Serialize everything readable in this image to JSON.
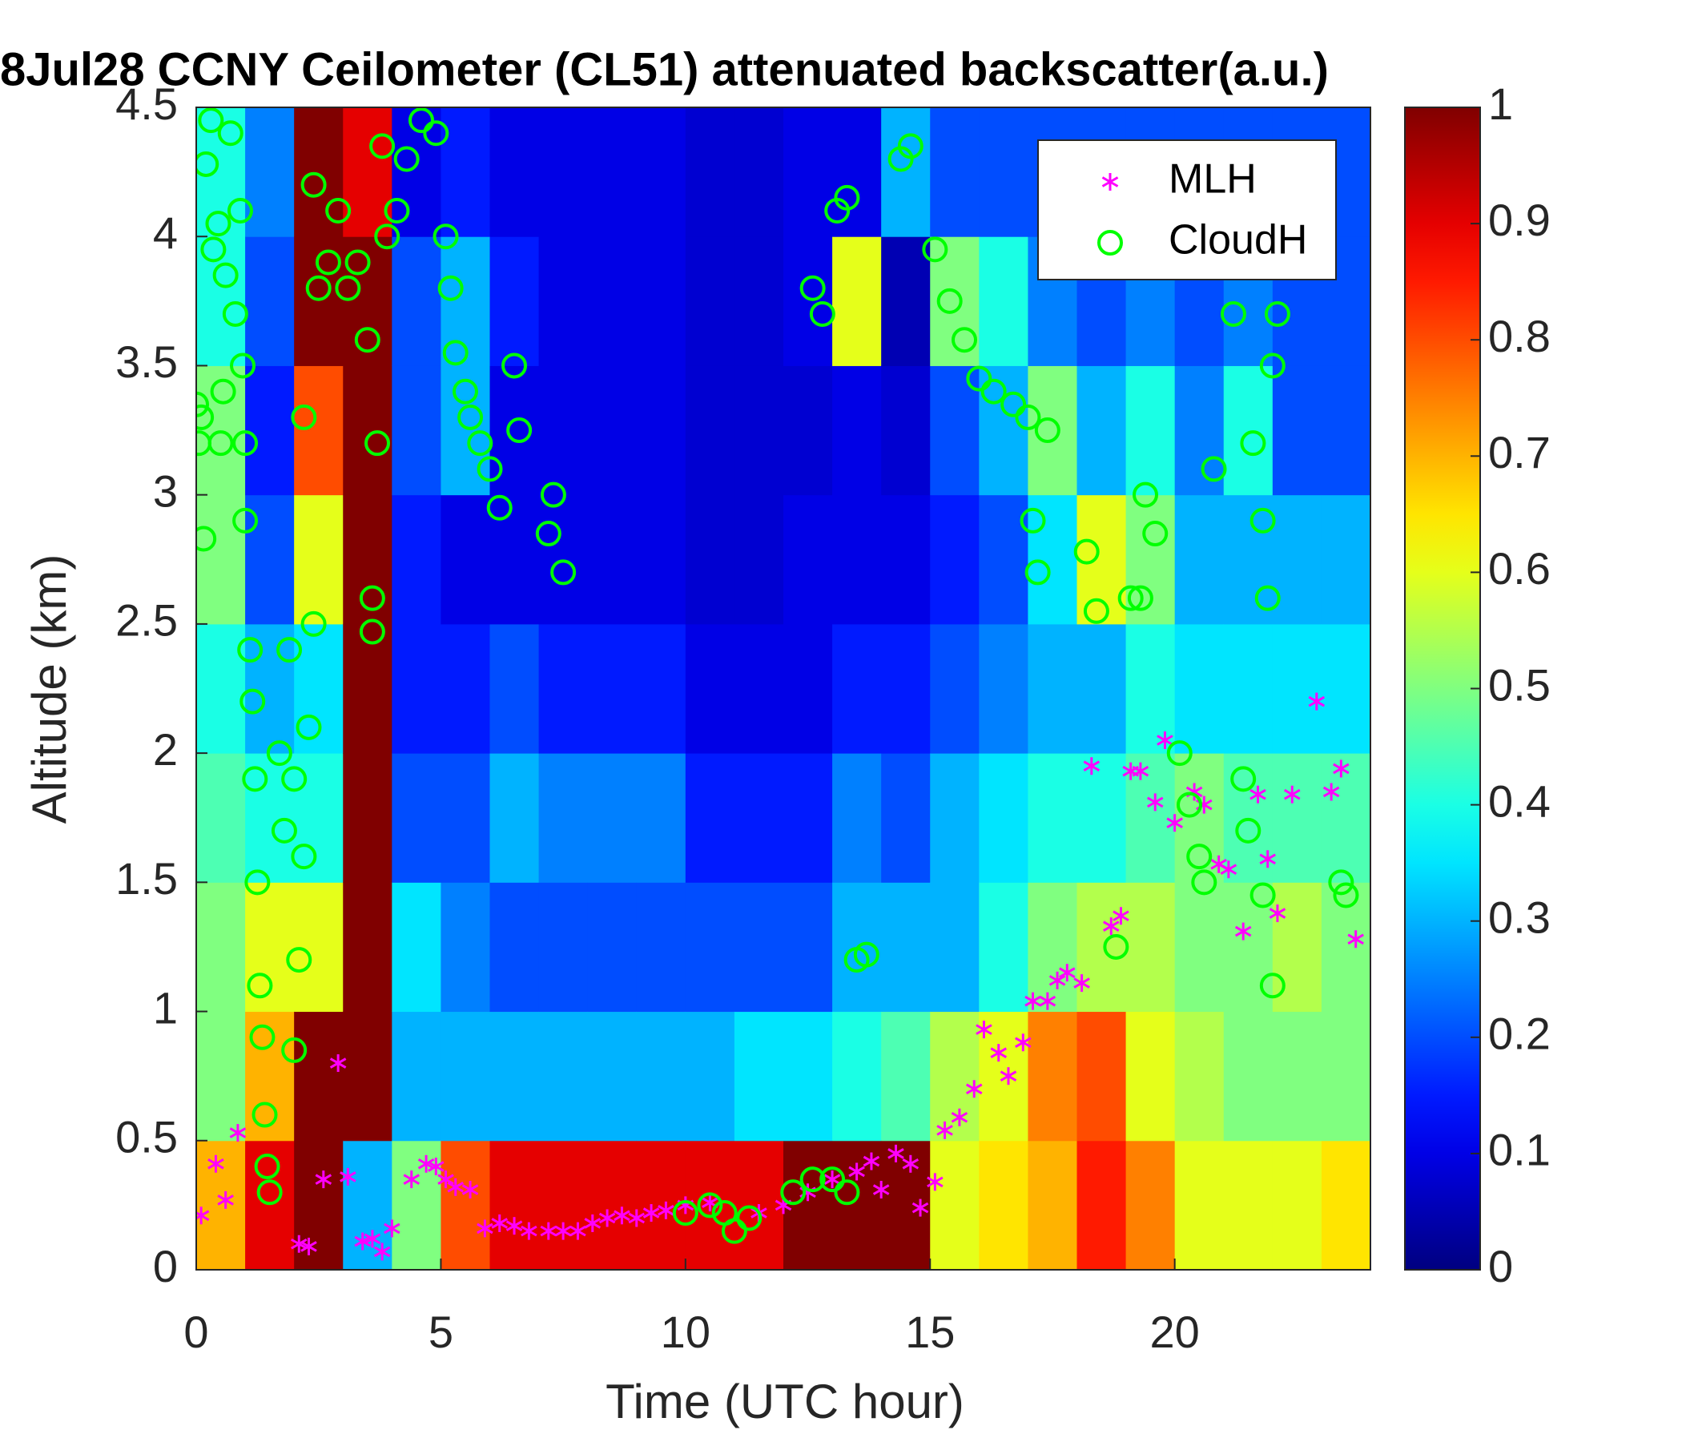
{
  "chart_data": {
    "type": "heatmap",
    "title": "8Jul28 CCNY Ceilometer (CL51) attenuated backscatter(a.u.)",
    "x_label": "Time (UTC hour)",
    "y_label": "Altitude (km)",
    "xlim": [
      0,
      24
    ],
    "ylim": [
      0,
      4.5
    ],
    "xticks": [
      0,
      5,
      10,
      15,
      20
    ],
    "yticks": [
      0,
      0.5,
      1,
      1.5,
      2,
      2.5,
      3,
      3.5,
      4,
      4.5
    ],
    "colormap": "jet",
    "clim": [
      0,
      1
    ],
    "cticks": [
      0,
      0.1,
      0.2,
      0.3,
      0.4,
      0.5,
      0.6,
      0.7,
      0.8,
      0.9,
      1
    ],
    "legend": "northeast",
    "heat_x": [
      0.5,
      1.5,
      2.5,
      3.5,
      4.5,
      5.5,
      6.5,
      7.5,
      8.5,
      9.5,
      10.5,
      11.5,
      12.5,
      13.5,
      14.5,
      15.5,
      16.5,
      17.5,
      18.5,
      19.5,
      20.5,
      21.5,
      22.5,
      23.5
    ],
    "heat_y": [
      0.25,
      0.75,
      1.25,
      1.75,
      2.25,
      2.75,
      3.25,
      3.75,
      4.25
    ],
    "z": [
      [
        0.7,
        0.5,
        0.5,
        0.45,
        0.4,
        0.5,
        0.5,
        0.4,
        0.4
      ],
      [
        0.9,
        0.7,
        0.6,
        0.4,
        0.3,
        0.2,
        0.15,
        0.2,
        0.25
      ],
      [
        1,
        1,
        0.6,
        0.4,
        0.35,
        0.6,
        0.8,
        1,
        1
      ],
      [
        0.3,
        1,
        1,
        1,
        1,
        1,
        1,
        1,
        0.9
      ],
      [
        0.5,
        0.3,
        0.35,
        0.2,
        0.15,
        0.15,
        0.2,
        0.2,
        0.1
      ],
      [
        0.8,
        0.3,
        0.25,
        0.2,
        0.15,
        0.1,
        0.3,
        0.3,
        0.15
      ],
      [
        0.9,
        0.3,
        0.2,
        0.3,
        0.2,
        0.1,
        0.1,
        0.15,
        0.1
      ],
      [
        0.9,
        0.3,
        0.2,
        0.25,
        0.15,
        0.1,
        0.1,
        0.1,
        0.1
      ],
      [
        0.9,
        0.3,
        0.2,
        0.25,
        0.15,
        0.1,
        0.1,
        0.1,
        0.1
      ],
      [
        0.9,
        0.3,
        0.2,
        0.25,
        0.15,
        0.1,
        0.1,
        0.1,
        0.1
      ],
      [
        0.9,
        0.3,
        0.2,
        0.15,
        0.1,
        0.08,
        0.08,
        0.08,
        0.08
      ],
      [
        0.9,
        0.35,
        0.2,
        0.15,
        0.1,
        0.08,
        0.08,
        0.08,
        0.08
      ],
      [
        1,
        0.35,
        0.2,
        0.15,
        0.1,
        0.1,
        0.08,
        0.1,
        0.1
      ],
      [
        1,
        0.4,
        0.3,
        0.25,
        0.15,
        0.1,
        0.1,
        0.6,
        0.1
      ],
      [
        1,
        0.45,
        0.3,
        0.2,
        0.15,
        0.1,
        0.08,
        0.05,
        0.3
      ],
      [
        0.6,
        0.55,
        0.3,
        0.3,
        0.2,
        0.15,
        0.2,
        0.5,
        0.2
      ],
      [
        0.65,
        0.6,
        0.4,
        0.35,
        0.25,
        0.2,
        0.3,
        0.4,
        0.2
      ],
      [
        0.7,
        0.75,
        0.5,
        0.4,
        0.3,
        0.35,
        0.5,
        0.25,
        0.2
      ],
      [
        0.85,
        0.8,
        0.55,
        0.4,
        0.3,
        0.6,
        0.3,
        0.2,
        0.2
      ],
      [
        0.75,
        0.6,
        0.55,
        0.45,
        0.4,
        0.5,
        0.4,
        0.25,
        0.2
      ],
      [
        0.6,
        0.55,
        0.5,
        0.5,
        0.35,
        0.3,
        0.25,
        0.2,
        0.2
      ],
      [
        0.6,
        0.5,
        0.5,
        0.45,
        0.35,
        0.3,
        0.4,
        0.25,
        0.2
      ],
      [
        0.6,
        0.5,
        0.55,
        0.45,
        0.35,
        0.3,
        0.2,
        0.2,
        0.2
      ],
      [
        0.65,
        0.5,
        0.5,
        0.45,
        0.35,
        0.3,
        0.2,
        0.2,
        0.2
      ]
    ],
    "series": [
      {
        "name": "MLH",
        "color": "#ff00ff",
        "marker": "asterisk",
        "x": [
          0.1,
          0.4,
          0.6,
          0.85,
          2.1,
          2.3,
          2.6,
          2.9,
          3.1,
          3.4,
          3.6,
          3.8,
          4.0,
          4.4,
          4.7,
          4.9,
          5.1,
          5.3,
          5.6,
          5.9,
          6.2,
          6.5,
          6.8,
          7.2,
          7.5,
          7.8,
          8.1,
          8.4,
          8.7,
          9.0,
          9.3,
          9.6,
          10.0,
          10.5,
          11.5,
          12.0,
          12.5,
          13.0,
          13.5,
          13.8,
          14.0,
          14.3,
          14.6,
          14.8,
          15.1,
          15.3,
          15.6,
          15.9,
          16.1,
          16.4,
          16.6,
          16.9,
          17.1,
          17.4,
          17.6,
          17.8,
          18.1,
          18.3,
          18.7,
          18.9,
          19.1,
          19.3,
          19.6,
          19.8,
          20.0,
          20.4,
          20.6,
          20.9,
          21.1,
          21.4,
          21.7,
          21.9,
          22.1,
          22.4,
          22.9,
          23.2,
          23.4,
          23.7
        ],
        "y": [
          0.21,
          0.41,
          0.27,
          0.53,
          0.1,
          0.09,
          0.35,
          0.8,
          0.36,
          0.11,
          0.12,
          0.07,
          0.16,
          0.35,
          0.41,
          0.4,
          0.35,
          0.32,
          0.31,
          0.16,
          0.18,
          0.17,
          0.15,
          0.15,
          0.15,
          0.15,
          0.18,
          0.2,
          0.21,
          0.2,
          0.22,
          0.23,
          0.25,
          0.26,
          0.22,
          0.25,
          0.3,
          0.35,
          0.38,
          0.42,
          0.31,
          0.45,
          0.41,
          0.24,
          0.34,
          0.54,
          0.59,
          0.7,
          0.93,
          0.84,
          0.75,
          0.88,
          1.04,
          1.04,
          1.12,
          1.15,
          1.11,
          1.95,
          1.33,
          1.37,
          1.93,
          1.93,
          1.81,
          2.05,
          1.73,
          1.85,
          1.8,
          1.57,
          1.55,
          1.31,
          1.84,
          1.59,
          1.38,
          1.84,
          2.2,
          1.85,
          1.94,
          1.28
        ]
      },
      {
        "name": "CloudH",
        "color": "#00ff00",
        "marker": "circle",
        "x": [
          0.0,
          0.05,
          0.1,
          0.15,
          0.2,
          0.3,
          0.35,
          0.45,
          0.5,
          0.55,
          0.6,
          0.7,
          0.8,
          0.9,
          0.95,
          1.0,
          1.0,
          1.1,
          1.15,
          1.2,
          1.25,
          1.3,
          1.35,
          1.4,
          1.45,
          1.5,
          1.7,
          1.8,
          1.9,
          2.0,
          2.0,
          2.1,
          2.2,
          2.3,
          2.4,
          2.2,
          2.5,
          2.4,
          2.7,
          2.9,
          3.1,
          3.3,
          3.5,
          3.6,
          3.6,
          3.7,
          3.8,
          3.9,
          4.1,
          4.3,
          4.6,
          4.9,
          5.1,
          5.2,
          5.3,
          5.5,
          5.6,
          5.8,
          6.0,
          6.2,
          6.5,
          6.6,
          7.2,
          7.3,
          7.5,
          10.0,
          10.5,
          10.8,
          11.0,
          11.3,
          12.2,
          12.6,
          13.0,
          13.3,
          12.6,
          12.8,
          13.1,
          13.3,
          13.5,
          13.7,
          14.4,
          14.6,
          15.1,
          15.4,
          15.7,
          16.0,
          16.3,
          16.7,
          17.0,
          17.1,
          17.2,
          17.4,
          18.2,
          18.4,
          18.8,
          19.1,
          19.3,
          19.4,
          19.6,
          20.1,
          20.3,
          20.5,
          20.6,
          20.8,
          21.2,
          21.4,
          21.5,
          21.6,
          21.8,
          21.8,
          21.9,
          22.0,
          22.0,
          22.1,
          23.4,
          23.5
        ],
        "y": [
          3.35,
          3.2,
          3.3,
          2.83,
          4.28,
          4.45,
          3.95,
          4.05,
          3.2,
          3.4,
          3.85,
          4.4,
          3.7,
          4.1,
          3.5,
          3.2,
          2.9,
          2.4,
          2.2,
          1.9,
          1.5,
          1.1,
          0.9,
          0.6,
          0.4,
          0.3,
          2.0,
          1.7,
          2.4,
          1.9,
          0.85,
          1.2,
          1.6,
          2.1,
          2.5,
          3.3,
          3.8,
          4.2,
          3.9,
          4.1,
          3.8,
          3.9,
          3.6,
          2.6,
          2.47,
          3.2,
          4.35,
          4.0,
          4.1,
          4.3,
          4.45,
          4.4,
          4.0,
          3.8,
          3.55,
          3.4,
          3.3,
          3.2,
          3.1,
          2.95,
          3.5,
          3.25,
          2.85,
          3.0,
          2.7,
          0.22,
          0.25,
          0.22,
          0.15,
          0.2,
          0.3,
          0.35,
          0.35,
          0.3,
          3.8,
          3.7,
          4.1,
          4.15,
          1.2,
          1.22,
          4.3,
          4.35,
          3.95,
          3.75,
          3.6,
          3.45,
          3.4,
          3.35,
          3.3,
          2.9,
          2.7,
          3.25,
          2.78,
          2.55,
          1.25,
          2.6,
          2.6,
          3.0,
          2.85,
          2.0,
          1.8,
          1.6,
          1.5,
          3.1,
          3.7,
          1.9,
          1.7,
          3.2,
          2.9,
          1.45,
          2.6,
          1.1,
          3.5,
          3.7,
          1.5,
          1.45
        ]
      }
    ]
  }
}
